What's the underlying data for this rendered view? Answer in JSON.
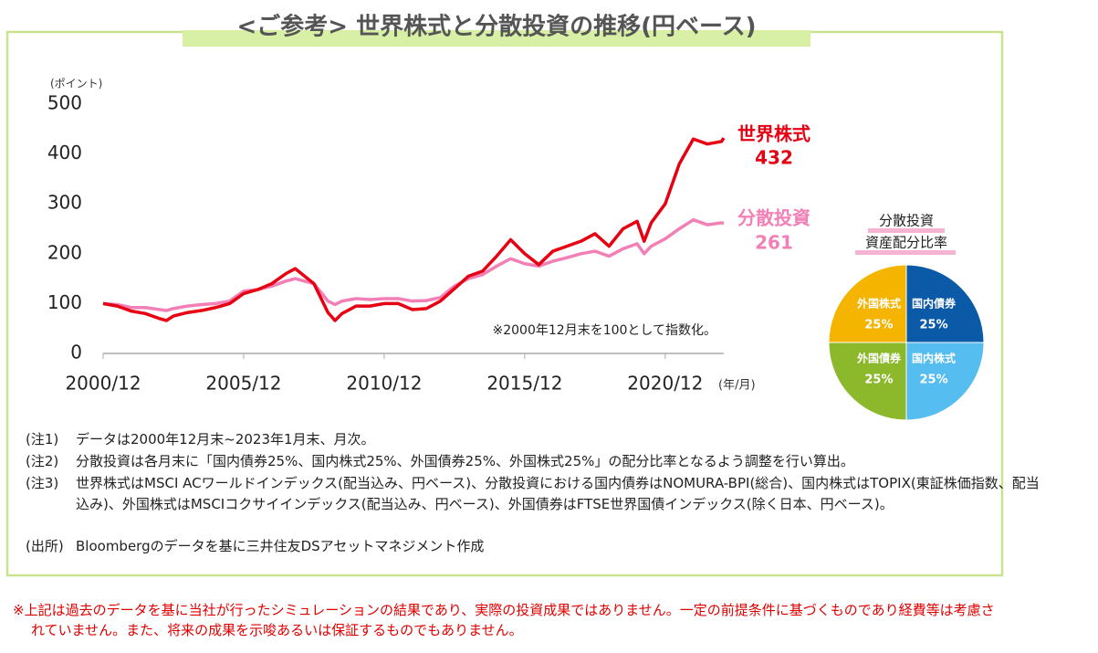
{
  "header": {
    "title": "<ご参考> 世界株式と分散投資の推移(円ベース)"
  },
  "chart_data": [
    {
      "type": "line",
      "y_unit": "(ポイント)",
      "x_unit": "(年/月)",
      "annotation": "※2000年12月末を100として指数化。",
      "x": [
        "2000/12",
        "2001/06",
        "2001/12",
        "2002/06",
        "2002/12",
        "2003/03",
        "2003/06",
        "2003/12",
        "2004/06",
        "2004/12",
        "2005/06",
        "2005/12",
        "2006/06",
        "2006/12",
        "2007/06",
        "2007/10",
        "2008/06",
        "2008/12",
        "2009/03",
        "2009/06",
        "2009/12",
        "2010/06",
        "2010/12",
        "2011/06",
        "2011/12",
        "2012/06",
        "2012/12",
        "2013/06",
        "2013/12",
        "2014/06",
        "2014/12",
        "2015/06",
        "2015/12",
        "2016/06",
        "2016/12",
        "2017/06",
        "2017/12",
        "2018/06",
        "2018/12",
        "2019/06",
        "2019/12",
        "2020/03",
        "2020/06",
        "2020/12",
        "2021/06",
        "2021/12",
        "2022/06",
        "2022/12",
        "2023/01"
      ],
      "xlim": [
        "2000/12",
        "2023/01"
      ],
      "xticks": [
        "2000/12",
        "2005/12",
        "2010/12",
        "2015/12",
        "2020/12"
      ],
      "ylim": [
        0,
        500
      ],
      "yticks": [
        0,
        100,
        200,
        300,
        400,
        500
      ],
      "grid": false,
      "series": [
        {
          "name": "世界株式",
          "color": "#e60012",
          "values": [
            100,
            95,
            85,
            80,
            70,
            66,
            75,
            82,
            86,
            92,
            100,
            120,
            128,
            140,
            160,
            170,
            140,
            82,
            66,
            80,
            95,
            95,
            100,
            100,
            88,
            90,
            105,
            130,
            155,
            165,
            195,
            228,
            200,
            178,
            205,
            215,
            225,
            240,
            215,
            250,
            265,
            225,
            262,
            300,
            380,
            430,
            420,
            425,
            432
          ]
        },
        {
          "name": "分散投資",
          "color": "#f27fb5",
          "values": [
            100,
            98,
            92,
            92,
            88,
            86,
            90,
            95,
            98,
            100,
            105,
            125,
            128,
            135,
            145,
            150,
            140,
            105,
            98,
            105,
            110,
            108,
            110,
            110,
            105,
            106,
            112,
            135,
            150,
            158,
            175,
            190,
            180,
            175,
            185,
            192,
            200,
            205,
            195,
            210,
            220,
            200,
            215,
            230,
            250,
            268,
            258,
            262,
            261
          ]
        }
      ]
    },
    {
      "type": "pie",
      "title": [
        "分散投資",
        "資産配分比率"
      ],
      "categories": [
        "国内債券",
        "国内株式",
        "外国債券",
        "外国株式"
      ],
      "values": [
        25,
        25,
        25,
        25
      ],
      "value_labels": [
        "25%",
        "25%",
        "25%",
        "25%"
      ],
      "colors": [
        "#0b5aa8",
        "#56bdf0",
        "#8cb82b",
        "#f5b400"
      ]
    }
  ],
  "notes": [
    {
      "label": "(注1)",
      "text": "データは2000年12月末~2023年1月末、月次。"
    },
    {
      "label": "(注2)",
      "text": "分散投資は各月末に「国内債券25%、国内株式25%、外国債券25%、外国株式25%」の配分比率となるよう調整を行い算出。"
    },
    {
      "label": "(注3)",
      "text": "世界株式はMSCI ACワールドインデックス(配当込み、円ベース)、分散投資における国内債券はNOMURA-BPI(総合)、国内株式はTOPIX(東証株価指数、配当込み)、外国株式はMSCIコクサイインデックス(配当込み、円ベース)、外国債券はFTSE世界国債インデックス(除く日本、円ベース)。"
    },
    {
      "label": "(出所)",
      "text": "Bloombergのデータを基に三井住友DSアセットマネジメント作成"
    }
  ],
  "disclaimer": "※上記は過去のデータを基に当社が行ったシミュレーションの結果であり、実際の投資成果ではありません。一定の前提条件に基づくものであり経費等は考慮されていません。また、将来の成果を示唆あるいは保証するものでもありません。"
}
